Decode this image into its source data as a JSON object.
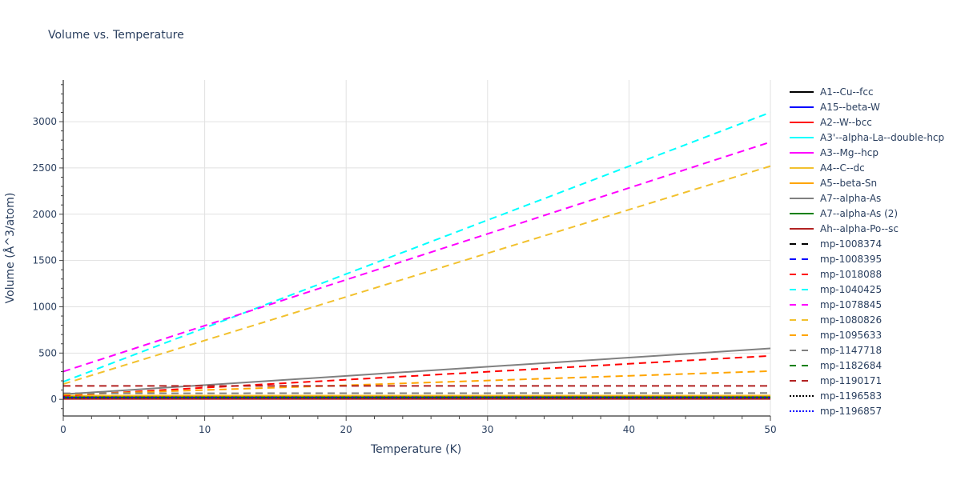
{
  "chart_data": {
    "type": "line",
    "title": "Volume vs. Temperature",
    "xlabel": "Temperature (K)",
    "ylabel": "Volume (Å^3/atom)",
    "xlim": [
      0,
      50
    ],
    "ylim": [
      -180,
      3450
    ],
    "x_ticks": [
      0,
      10,
      20,
      30,
      40,
      50
    ],
    "y_ticks": [
      0,
      500,
      1000,
      1500,
      2000,
      2500,
      3000
    ],
    "grid": true,
    "legend_position": "right",
    "x": [
      0,
      50
    ],
    "series": [
      {
        "name": "A1--Cu--fcc",
        "color": "#000000",
        "dash": "solid",
        "values": [
          12,
          13
        ]
      },
      {
        "name": "A15--beta-W",
        "color": "#0000ff",
        "dash": "solid",
        "values": [
          16,
          17
        ]
      },
      {
        "name": "A2--W--bcc",
        "color": "#ff0000",
        "dash": "solid",
        "values": [
          16,
          17
        ]
      },
      {
        "name": "A3'--alpha-La--double-hcp",
        "color": "#00ffff",
        "dash": "solid",
        "values": [
          37,
          38
        ]
      },
      {
        "name": "A3--Mg--hcp",
        "color": "#ff00ff",
        "dash": "solid",
        "values": [
          23,
          24
        ]
      },
      {
        "name": "A4--C--dc",
        "color": "#f2c12e",
        "dash": "solid",
        "values": [
          40,
          41
        ]
      },
      {
        "name": "A5--beta-Sn",
        "color": "#ffa500",
        "dash": "solid",
        "values": [
          30,
          31
        ]
      },
      {
        "name": "A7--alpha-As",
        "color": "#808080",
        "dash": "solid",
        "values": [
          55,
          550
        ]
      },
      {
        "name": "A7--alpha-As (2)",
        "color": "#008000",
        "dash": "solid",
        "values": [
          22,
          23
        ]
      },
      {
        "name": "Ah--alpha-Po--sc",
        "color": "#b22222",
        "dash": "solid",
        "values": [
          5,
          5
        ]
      },
      {
        "name": "mp-1008374",
        "color": "#000000",
        "dash": "dash",
        "values": [
          20,
          21
        ]
      },
      {
        "name": "mp-1008395",
        "color": "#0000ff",
        "dash": "dash",
        "values": [
          20,
          21
        ]
      },
      {
        "name": "mp-1018088",
        "color": "#ff0000",
        "dash": "dash",
        "values": [
          40,
          470
        ]
      },
      {
        "name": "mp-1040425",
        "color": "#00ffff",
        "dash": "dash",
        "values": [
          190,
          3100
        ]
      },
      {
        "name": "mp-1078845",
        "color": "#ff00ff",
        "dash": "dash",
        "values": [
          300,
          2780
        ]
      },
      {
        "name": "mp-1080826",
        "color": "#f2c12e",
        "dash": "dash",
        "values": [
          165,
          2520
        ]
      },
      {
        "name": "mp-1095633",
        "color": "#ffa500",
        "dash": "dash",
        "values": [
          50,
          305
        ]
      },
      {
        "name": "mp-1147718",
        "color": "#808080",
        "dash": "dash",
        "values": [
          65,
          68
        ]
      },
      {
        "name": "mp-1182684",
        "color": "#008000",
        "dash": "dash",
        "values": [
          20,
          21
        ]
      },
      {
        "name": "mp-1190171",
        "color": "#b22222",
        "dash": "dash",
        "values": [
          145,
          145
        ]
      },
      {
        "name": "mp-1196583",
        "color": "#000000",
        "dash": "dot",
        "values": [
          20,
          21
        ]
      },
      {
        "name": "mp-1196857",
        "color": "#0000ff",
        "dash": "dot",
        "values": [
          20,
          21
        ]
      }
    ]
  }
}
